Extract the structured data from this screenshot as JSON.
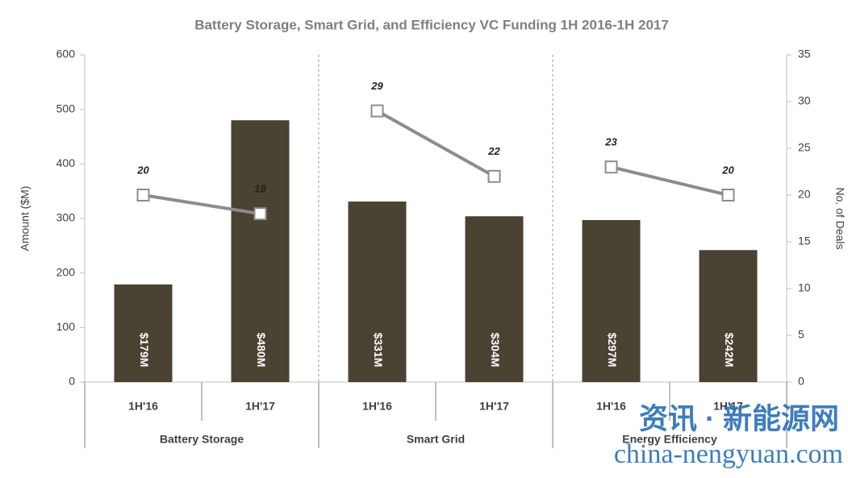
{
  "chart_data": {
    "type": "bar",
    "title": "Battery Storage, Smart Grid, and Efficiency VC Funding 1H 2016-1H 2017",
    "y_label": "Amount ($M)",
    "y2_label": "No. of Deals",
    "categories": [
      "1H'16",
      "1H'17",
      "1H'16",
      "1H'17",
      "1H'16",
      "1H'17"
    ],
    "groups": [
      "Battery Storage",
      "Smart Grid",
      "Energy Efficiency"
    ],
    "ylim": [
      0,
      600
    ],
    "yticks": [
      0,
      100,
      200,
      300,
      400,
      500,
      600
    ],
    "y2lim": [
      0,
      35
    ],
    "y2ticks": [
      0,
      5,
      10,
      15,
      20,
      25,
      30,
      35
    ],
    "series": [
      {
        "type": "bar",
        "color": "#4a4232",
        "values": [
          179,
          480,
          331,
          304,
          297,
          242
        ],
        "value_labels": [
          "$179M",
          "$480M",
          "$331M",
          "$304M",
          "$297M",
          "$242M"
        ]
      },
      {
        "type": "line",
        "axis": "y2",
        "color": "#8c8c8c",
        "values": [
          20,
          18,
          29,
          22,
          23,
          20
        ]
      }
    ],
    "watermark": [
      "资讯 · 新能源网",
      "china-nengyuan.com"
    ]
  }
}
